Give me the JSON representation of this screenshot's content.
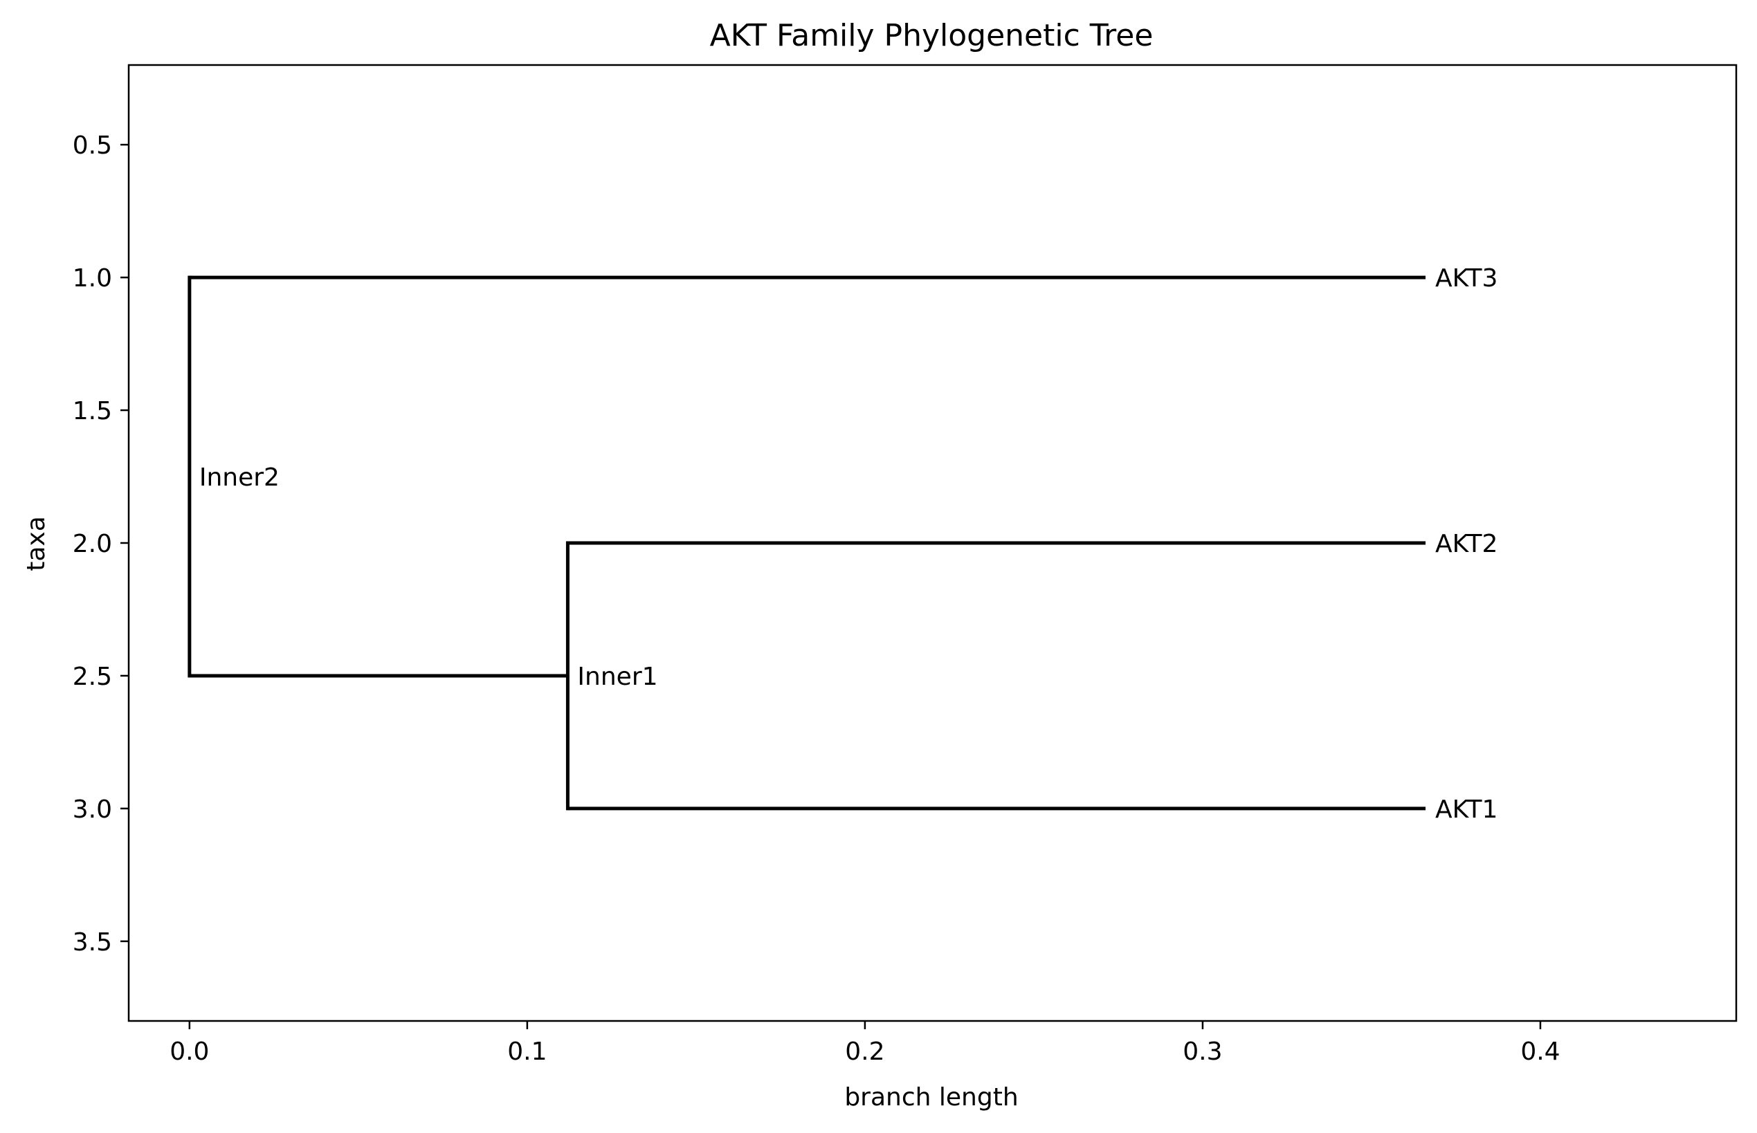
{
  "chart_data": {
    "type": "tree",
    "title": "AKT Family Phylogenetic Tree",
    "xlabel": "branch length",
    "ylabel": "taxa",
    "xlim": [
      -0.018,
      0.458
    ],
    "ylim": [
      3.8,
      0.2
    ],
    "xticks": [
      0.0,
      0.1,
      0.2,
      0.3,
      0.4
    ],
    "xtick_labels": [
      "0.0",
      "0.1",
      "0.2",
      "0.3",
      "0.4"
    ],
    "yticks": [
      0.5,
      1.0,
      1.5,
      2.0,
      2.5,
      3.0,
      3.5
    ],
    "ytick_labels": [
      "0.5",
      "1.0",
      "1.5",
      "2.0",
      "2.5",
      "3.0",
      "3.5"
    ],
    "grid": false,
    "line_color": "#000000",
    "nodes": [
      {
        "name": "Inner2",
        "x": 0.0,
        "y": 1.75,
        "children_y": [
          1.0,
          2.5
        ]
      },
      {
        "name": "Inner1",
        "x": 0.112,
        "y": 2.5,
        "children_y": [
          2.0,
          3.0
        ]
      }
    ],
    "leaves": [
      {
        "name": "AKT3",
        "x": 0.366,
        "y": 1.0
      },
      {
        "name": "AKT2",
        "x": 0.366,
        "y": 2.0
      },
      {
        "name": "AKT1",
        "x": 0.366,
        "y": 3.0
      }
    ],
    "branches": [
      {
        "from": "Inner2",
        "to": "AKT3",
        "x0": 0.0,
        "x1": 0.366,
        "y": 1.0
      },
      {
        "from": "Inner2",
        "to": "Inner1",
        "x0": 0.0,
        "x1": 0.112,
        "y": 2.5
      },
      {
        "from": "Inner1",
        "to": "AKT2",
        "x0": 0.112,
        "x1": 0.366,
        "y": 2.0
      },
      {
        "from": "Inner1",
        "to": "AKT1",
        "x0": 0.112,
        "x1": 0.366,
        "y": 3.0
      }
    ]
  }
}
